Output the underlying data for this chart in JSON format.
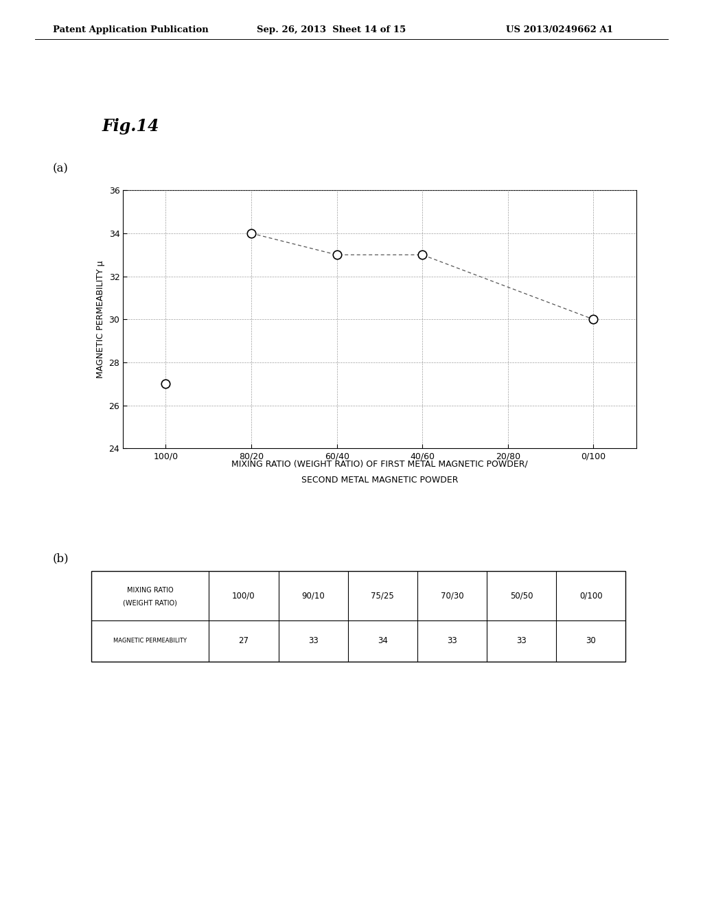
{
  "header_left": "Patent Application Publication",
  "header_center": "Sep. 26, 2013  Sheet 14 of 15",
  "header_right": "US 2013/0249662 A1",
  "fig_title": "Fig.14",
  "label_a": "(a)",
  "label_b": "(b)",
  "plot": {
    "x_labels": [
      "100/0",
      "80/20",
      "60/40",
      "40/60",
      "20/80",
      "0/100"
    ],
    "x_positions": [
      0,
      1,
      2,
      3,
      4,
      5
    ],
    "y_values": [
      27,
      34,
      33,
      33,
      null,
      30
    ],
    "ylim": [
      24,
      36
    ],
    "yticks": [
      24,
      26,
      28,
      30,
      32,
      34,
      36
    ],
    "ylabel": "MAGNETIC PERMEABILITY μ",
    "xlabel_line1": "MIXING RATIO (WEIGHT RATIO) OF FIRST METAL MAGNETIC POWDER/",
    "xlabel_line2": "SECOND METAL MAGNETIC POWDER",
    "dashed_line_x": [
      1,
      2,
      3,
      5
    ],
    "dashed_line_y": [
      34,
      33,
      33,
      30
    ],
    "dashed_peak_x": [
      1
    ],
    "dashed_peak_y": [
      34
    ]
  },
  "table": {
    "col_header": [
      "MIXING RATIO\n(WEIGHT RATIO)",
      "100/0",
      "90/10",
      "75/25",
      "70/30",
      "50/50",
      "0/100"
    ],
    "row_label": "MAGNETIC PERMEABILITY",
    "row_values": [
      "27",
      "33",
      "34",
      "33",
      "33",
      "30"
    ]
  },
  "page": {
    "bg_color": "#ffffff",
    "text_color": "#000000"
  }
}
